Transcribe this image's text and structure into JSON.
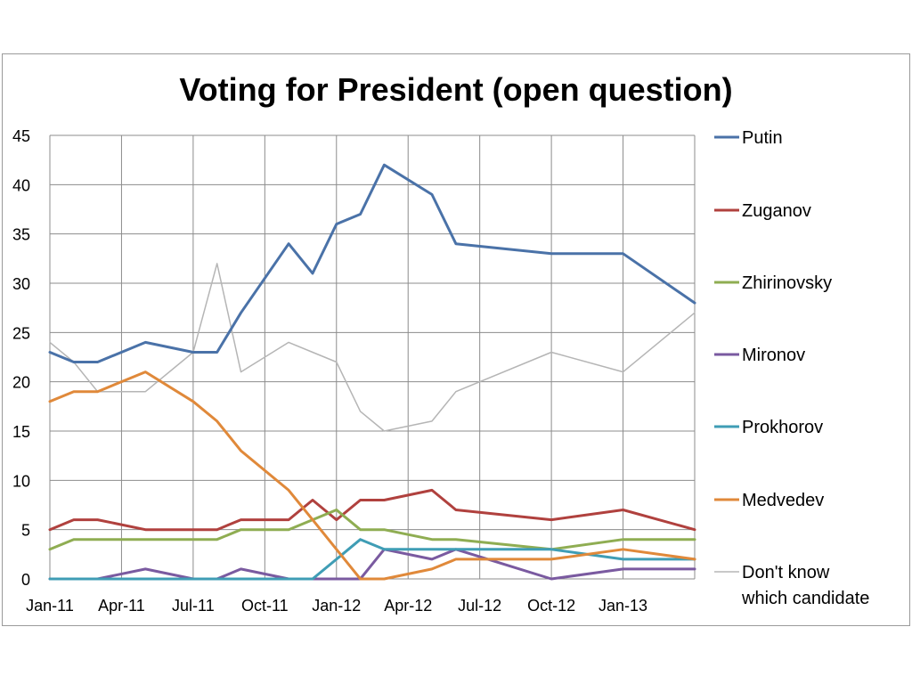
{
  "chart_data": {
    "type": "line",
    "title": "Voting for President (open question)",
    "xlabel": "",
    "ylabel": "",
    "ylim": [
      0,
      45
    ],
    "yticks": [
      0,
      5,
      10,
      15,
      20,
      25,
      30,
      35,
      40,
      45
    ],
    "x_tick_labels": [
      "Jan-11",
      "Apr-11",
      "Jul-11",
      "Oct-11",
      "Jan-12",
      "Apr-12",
      "Jul-12",
      "Oct-12",
      "Jan-13"
    ],
    "x_tick_dates": [
      "2011-01",
      "2011-04",
      "2011-07",
      "2011-10",
      "2012-01",
      "2012-04",
      "2012-07",
      "2012-10",
      "2013-01"
    ],
    "x_range": [
      "2011-01",
      "2013-04"
    ],
    "grid": true,
    "legend_position": "right",
    "x": [
      "2011-01",
      "2011-02",
      "2011-03",
      "2011-05",
      "2011-07",
      "2011-08",
      "2011-09",
      "2011-11",
      "2011-12",
      "2012-01",
      "2012-02",
      "2012-03",
      "2012-05",
      "2012-06",
      "2012-10",
      "2013-01",
      "2013-04"
    ],
    "series": [
      {
        "name": "Putin",
        "color": "#4a72a8",
        "width": 3,
        "values": [
          23,
          22,
          22,
          24,
          23,
          23,
          27,
          34,
          31,
          36,
          37,
          42,
          39,
          34,
          33,
          33,
          28
        ]
      },
      {
        "name": "Zuganov",
        "color": "#b0413e",
        "width": 3,
        "values": [
          5,
          6,
          6,
          5,
          5,
          5,
          6,
          6,
          8,
          6,
          8,
          8,
          9,
          7,
          6,
          7,
          5
        ]
      },
      {
        "name": "Zhirinovsky",
        "color": "#8fad52",
        "width": 3,
        "values": [
          3,
          4,
          4,
          4,
          4,
          4,
          5,
          5,
          6,
          7,
          5,
          5,
          4,
          4,
          3,
          4,
          4
        ]
      },
      {
        "name": "Mironov",
        "color": "#7a5aa0",
        "width": 3,
        "values": [
          0,
          0,
          0,
          1,
          0,
          0,
          1,
          0,
          0,
          0,
          0,
          3,
          2,
          3,
          0,
          1,
          1
        ]
      },
      {
        "name": "Prokhorov",
        "color": "#3f9db5",
        "width": 3,
        "values": [
          0,
          0,
          0,
          0,
          0,
          0,
          0,
          0,
          0,
          2,
          4,
          3,
          3,
          3,
          3,
          2,
          2
        ]
      },
      {
        "name": "Medvedev",
        "color": "#e0893a",
        "width": 3,
        "values": [
          18,
          19,
          19,
          21,
          18,
          16,
          13,
          9,
          6,
          3,
          0,
          0,
          1,
          2,
          2,
          3,
          2
        ]
      },
      {
        "name": "Don't know which candidate",
        "legend_lines": [
          "Don't know",
          "which candidate"
        ],
        "color": "#b5b5b5",
        "width": 1.5,
        "values": [
          24,
          22,
          19,
          19,
          23,
          32,
          21,
          24,
          23,
          22,
          17,
          15,
          16,
          19,
          23,
          21,
          27
        ]
      }
    ]
  }
}
